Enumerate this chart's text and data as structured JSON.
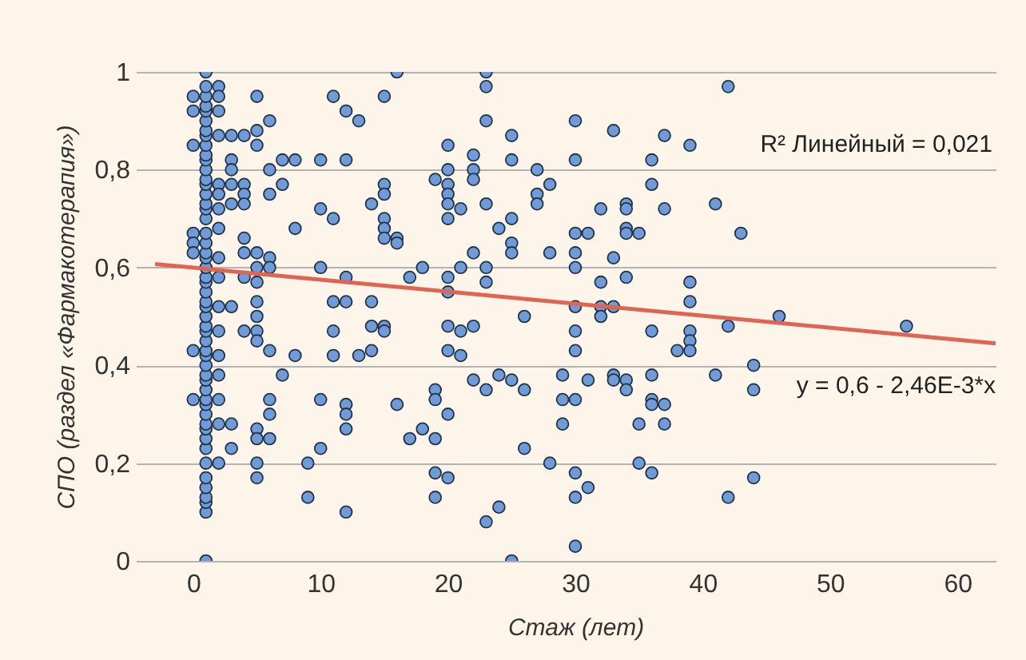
{
  "chart_data": {
    "type": "scatter",
    "xlabel": "Стаж (лет)",
    "ylabel": "СПО (раздел «Фармакотерапия»)",
    "xlim": [
      -3,
      63
    ],
    "xticks": [
      0,
      10,
      20,
      30,
      40,
      50,
      60
    ],
    "ylim": [
      0,
      1
    ],
    "yticks": [
      0,
      {
        "value": 0.2,
        "label": "0,2"
      },
      {
        "value": 0.4,
        "label": "0,4"
      },
      {
        "value": 0.6,
        "label": "0,6"
      },
      {
        "value": 0.8,
        "label": "0,8"
      },
      1
    ],
    "grid": "y",
    "marker": "circle",
    "annotations": [
      "R² Линейный = 0,021",
      "y = 0,6 - 2,46E-3*x"
    ],
    "series": [
      {
        "color": "#6f9bd8",
        "x": [
          0,
          0,
          0,
          0,
          0,
          0,
          0,
          0,
          1,
          1,
          1,
          1,
          1,
          1,
          1,
          1,
          1,
          1,
          1,
          1,
          1,
          1,
          1,
          1,
          1,
          1,
          1,
          1,
          1,
          1,
          1,
          1,
          1,
          1,
          1,
          1,
          1,
          1,
          1,
          1,
          1,
          1,
          1,
          1,
          1,
          1,
          1,
          1,
          1,
          1,
          1,
          1,
          1,
          1,
          1,
          1,
          1,
          1,
          1,
          1,
          2,
          2,
          2,
          2,
          2,
          2,
          2,
          2,
          2,
          2,
          2,
          2,
          2,
          2,
          2,
          2,
          2,
          3,
          3,
          3,
          3,
          3,
          3,
          3,
          3,
          4,
          4,
          4,
          4,
          4,
          4,
          4,
          4,
          5,
          5,
          5,
          5,
          5,
          5,
          5,
          5,
          5,
          5,
          5,
          5,
          5,
          5,
          6,
          6,
          6,
          6,
          6,
          6,
          6,
          6,
          6,
          7,
          7,
          7,
          8,
          8,
          8,
          9,
          9,
          10,
          10,
          10,
          10,
          10,
          11,
          11,
          11,
          11,
          11,
          12,
          12,
          12,
          12,
          12,
          12,
          12,
          12,
          13,
          13,
          14,
          14,
          14,
          14,
          15,
          15,
          15,
          15,
          15,
          15,
          15,
          15,
          16,
          16,
          16,
          16,
          17,
          17,
          18,
          18,
          19,
          19,
          19,
          19,
          19,
          19,
          20,
          20,
          20,
          20,
          20,
          20,
          20,
          20,
          20,
          20,
          20,
          20,
          21,
          21,
          21,
          21,
          22,
          22,
          22,
          22,
          22,
          22,
          23,
          23,
          23,
          23,
          23,
          23,
          23,
          23,
          24,
          24,
          24,
          25,
          25,
          25,
          25,
          25,
          25,
          25,
          26,
          26,
          26,
          27,
          27,
          27,
          28,
          28,
          28,
          29,
          29,
          29,
          30,
          30,
          30,
          30,
          30,
          30,
          30,
          30,
          30,
          30,
          30,
          30,
          31,
          31,
          31,
          32,
          32,
          32,
          32,
          33,
          33,
          33,
          33,
          33,
          34,
          34,
          34,
          34,
          34,
          34,
          34,
          35,
          35,
          35,
          36,
          36,
          36,
          36,
          36,
          36,
          36,
          37,
          37,
          37,
          37,
          38,
          39,
          39,
          39,
          39,
          39,
          39,
          41,
          41,
          42,
          42,
          42,
          43,
          44,
          44,
          44,
          46,
          56
        ],
        "values": [
          0.95,
          0.92,
          0.85,
          0.67,
          0.65,
          0.63,
          0.43,
          0.33,
          0,
          0.1,
          0.12,
          0.13,
          0.15,
          0.17,
          0.2,
          0.23,
          0.25,
          0.27,
          0.28,
          0.3,
          0.32,
          0.33,
          0.35,
          0.37,
          0.38,
          0.4,
          0.42,
          0.43,
          0.45,
          0.47,
          0.48,
          0.5,
          0.52,
          0.53,
          0.55,
          0.57,
          0.58,
          0.6,
          0.62,
          0.63,
          0.65,
          0.67,
          0.7,
          0.72,
          0.73,
          0.75,
          0.77,
          0.78,
          0.8,
          0.82,
          0.83,
          0.85,
          0.87,
          0.88,
          0.9,
          0.92,
          0.93,
          0.95,
          0.97,
          1.0,
          0.97,
          0.95,
          0.92,
          0.87,
          0.77,
          0.75,
          0.72,
          0.68,
          0.62,
          0.58,
          0.52,
          0.47,
          0.42,
          0.38,
          0.33,
          0.28,
          0.2,
          0.87,
          0.82,
          0.8,
          0.77,
          0.73,
          0.52,
          0.28,
          0.23,
          0.87,
          0.77,
          0.75,
          0.73,
          0.66,
          0.63,
          0.58,
          0.47,
          0.95,
          0.88,
          0.85,
          0.63,
          0.6,
          0.57,
          0.53,
          0.5,
          0.47,
          0.45,
          0.27,
          0.25,
          0.2,
          0.17,
          0.9,
          0.8,
          0.75,
          0.62,
          0.6,
          0.43,
          0.33,
          0.3,
          0.25,
          0.82,
          0.77,
          0.38,
          0.82,
          0.68,
          0.42,
          0.2,
          0.13,
          0.82,
          0.72,
          0.6,
          0.33,
          0.23,
          0.95,
          0.7,
          0.53,
          0.47,
          0.42,
          0.92,
          0.82,
          0.58,
          0.53,
          0.32,
          0.3,
          0.27,
          0.1,
          0.9,
          0.42,
          0.73,
          0.53,
          0.48,
          0.43,
          0.95,
          0.77,
          0.75,
          0.7,
          0.68,
          0.66,
          0.48,
          0.47,
          1.0,
          0.66,
          0.65,
          0.32,
          0.58,
          0.25,
          0.6,
          0.27,
          0.78,
          0.35,
          0.33,
          0.25,
          0.18,
          0.13,
          0.85,
          0.8,
          0.77,
          0.75,
          0.73,
          0.7,
          0.58,
          0.55,
          0.48,
          0.43,
          0.3,
          0.17,
          0.72,
          0.6,
          0.47,
          0.42,
          0.83,
          0.8,
          0.78,
          0.63,
          0.48,
          0.37,
          1.0,
          0.97,
          0.9,
          0.73,
          0.6,
          0.57,
          0.35,
          0.08,
          0.68,
          0.38,
          0.11,
          0.87,
          0.82,
          0.7,
          0.65,
          0.63,
          0.37,
          0.0,
          0.5,
          0.35,
          0.23,
          0.8,
          0.75,
          0.73,
          0.77,
          0.63,
          0.2,
          0.38,
          0.33,
          0.28,
          0.9,
          0.82,
          0.67,
          0.63,
          0.6,
          0.52,
          0.47,
          0.43,
          0.33,
          0.18,
          0.13,
          0.03,
          0.67,
          0.37,
          0.15,
          0.72,
          0.57,
          0.52,
          0.5,
          0.88,
          0.62,
          0.52,
          0.38,
          0.37,
          0.73,
          0.72,
          0.68,
          0.67,
          0.58,
          0.37,
          0.35,
          0.67,
          0.28,
          0.2,
          0.82,
          0.77,
          0.47,
          0.38,
          0.33,
          0.32,
          0.18,
          0.87,
          0.72,
          0.32,
          0.28,
          0.43,
          0.85,
          0.57,
          0.53,
          0.47,
          0.45,
          0.43,
          0.73,
          0.38,
          0.97,
          0.48,
          0.13,
          0.67,
          0.4,
          0.35,
          0.17,
          0.5,
          0.48
        ]
      },
      {
        "type": "line",
        "marker": "none",
        "color": "#e06452",
        "x": [
          -3,
          63
        ],
        "values": [
          0.607,
          0.445
        ]
      }
    ]
  }
}
